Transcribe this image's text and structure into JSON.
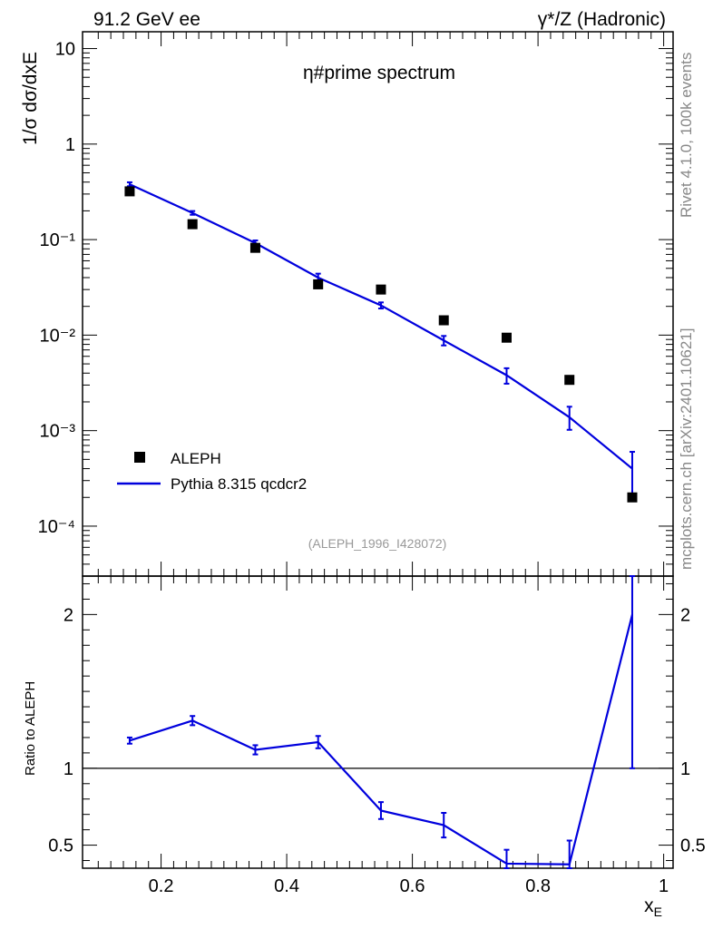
{
  "header": {
    "left": "91.2 GeV ee",
    "right": "γ*/Z (Hadronic)"
  },
  "sidebar": {
    "top": "Rivet 4.1.0,  100k events",
    "bottom": "mcplots.cern.ch [arXiv:2401.10621]"
  },
  "colors": {
    "mc": "#0000dd",
    "data": "#000000",
    "watermark": "#999999"
  },
  "chart_data": [
    {
      "type": "scatter",
      "title": "η#prime spectrum",
      "ylabel": "1/σ dσ/dxE",
      "yscale": "log",
      "ylim": [
        3e-05,
        15
      ],
      "xlim": [
        0.075,
        1.015
      ],
      "y_ticks": [
        {
          "value": 10,
          "label": "10"
        },
        {
          "value": 1,
          "label": "1"
        },
        {
          "value": 0.1,
          "label": "10⁻¹"
        },
        {
          "value": 0.01,
          "label": "10⁻²"
        },
        {
          "value": 0.001,
          "label": "10⁻³"
        },
        {
          "value": 0.0001,
          "label": "10⁻⁴"
        }
      ],
      "watermark": "(ALEPH_1996_I428072)",
      "legend": {
        "position": "bottom-left",
        "data_label": "ALEPH",
        "mc_label": "Pythia 8.315 qcdcr2"
      },
      "series": [
        {
          "name": "ALEPH",
          "style": "markers",
          "x": [
            0.15,
            0.25,
            0.35,
            0.45,
            0.55,
            0.65,
            0.75,
            0.85,
            0.95
          ],
          "y": [
            0.32,
            0.145,
            0.082,
            0.034,
            0.03,
            0.0143,
            0.0094,
            0.0034,
            0.0002
          ]
        },
        {
          "name": "Pythia 8.315 qcdcr2",
          "style": "line",
          "x": [
            0.15,
            0.25,
            0.35,
            0.45,
            0.55,
            0.65,
            0.75,
            0.85,
            0.95
          ],
          "y": [
            0.38,
            0.19,
            0.092,
            0.04,
            0.0205,
            0.0088,
            0.0038,
            0.00138,
            0.0004
          ],
          "err_low": [
            0.362,
            0.182,
            0.086,
            0.036,
            0.019,
            0.0078,
            0.0031,
            0.00102,
            0.0002
          ],
          "err_high": [
            0.398,
            0.199,
            0.098,
            0.044,
            0.022,
            0.0098,
            0.0045,
            0.00178,
            0.0006
          ]
        }
      ]
    },
    {
      "type": "line",
      "ylabel": "Ratio to ALEPH",
      "xlabel": "xE",
      "ylim": [
        0.35,
        2.25
      ],
      "xlim": [
        0.075,
        1.015
      ],
      "x_ticks": [
        0.2,
        0.4,
        0.6,
        0.8,
        1
      ],
      "x_tick_labels": [
        "0.2",
        "0.4",
        "0.6",
        "0.8",
        "1"
      ],
      "y_ticks": [
        0.5,
        1,
        2
      ],
      "y_tick_labels": [
        "0.5",
        "1",
        "2"
      ],
      "reference_line": 1,
      "series": [
        {
          "name": "Pythia 8.315 qcdcr2",
          "x": [
            0.15,
            0.25,
            0.35,
            0.45,
            0.55,
            0.65,
            0.75,
            0.85,
            0.95
          ],
          "y": [
            1.18,
            1.31,
            1.12,
            1.17,
            0.725,
            0.63,
            0.38,
            0.375,
            2.0
          ],
          "err_low": [
            1.16,
            1.28,
            1.09,
            1.13,
            0.67,
            0.55,
            0.33,
            0.33,
            1.0
          ],
          "err_high": [
            1.2,
            1.34,
            1.15,
            1.21,
            0.78,
            0.71,
            0.47,
            0.53,
            2.25
          ]
        }
      ]
    }
  ]
}
